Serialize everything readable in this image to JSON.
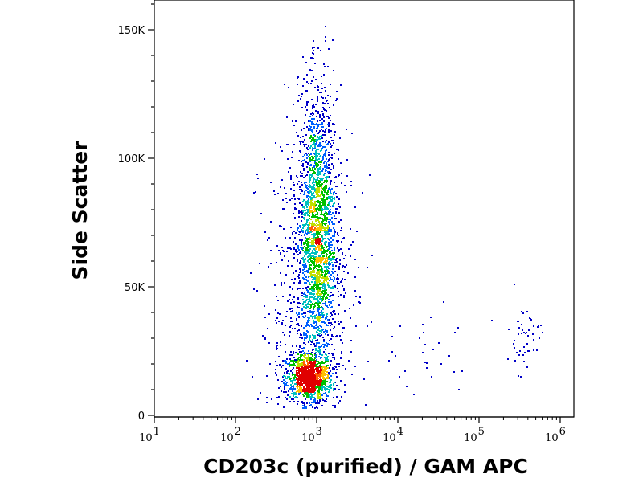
{
  "chart_data": {
    "type": "scatter",
    "subtype": "flow-cytometry density dot plot",
    "xlabel": "CD203c (purified) / GAM APC",
    "ylabel": "Side Scatter",
    "xscale": "log",
    "xlim": [
      10,
      1000000
    ],
    "ylim": [
      0,
      161000
    ],
    "xticks": [
      {
        "value": 10,
        "base": "10",
        "exp": "1"
      },
      {
        "value": 100,
        "base": "10",
        "exp": "2"
      },
      {
        "value": 1000,
        "base": "10",
        "exp": "3"
      },
      {
        "value": 10000,
        "base": "10",
        "exp": "4"
      },
      {
        "value": 100000,
        "base": "10",
        "exp": "5"
      },
      {
        "value": 1000000,
        "base": "10",
        "exp": "6"
      }
    ],
    "yticks": [
      {
        "value": 0,
        "label": "0"
      },
      {
        "value": 50000,
        "label": "50K"
      },
      {
        "value": 100000,
        "label": "100K"
      },
      {
        "value": 150000,
        "label": "150K"
      }
    ],
    "color_scale": [
      "#0000c8",
      "#0060ff",
      "#00c0c0",
      "#00c000",
      "#c0e000",
      "#ffc000",
      "#ff6000",
      "#e00000"
    ],
    "populations": [
      {
        "name": "low-SSC dense cluster",
        "x_log10_center": 2.9,
        "x_log10_sd": 0.14,
        "y_center": 15000,
        "y_sd": 4500,
        "count": 1100
      },
      {
        "name": "main CD203c-dim population",
        "x_log10_center": 3.0,
        "x_log10_sd": 0.12,
        "y_center": 70000,
        "y_sd": 28000,
        "count": 2300
      },
      {
        "name": "broad scatter",
        "x_log10_center": 2.9,
        "x_log10_sd": 0.3,
        "y_center": 45000,
        "y_sd": 35000,
        "count": 600
      },
      {
        "name": "CD203c-high population",
        "x_log10_center": 5.55,
        "x_log10_sd": 0.1,
        "y_center": 30000,
        "y_sd": 7000,
        "count": 55
      },
      {
        "name": "intermediate events",
        "x_log10_center": 4.3,
        "x_log10_sd": 0.35,
        "y_center": 25000,
        "y_sd": 9000,
        "count": 30
      }
    ]
  }
}
